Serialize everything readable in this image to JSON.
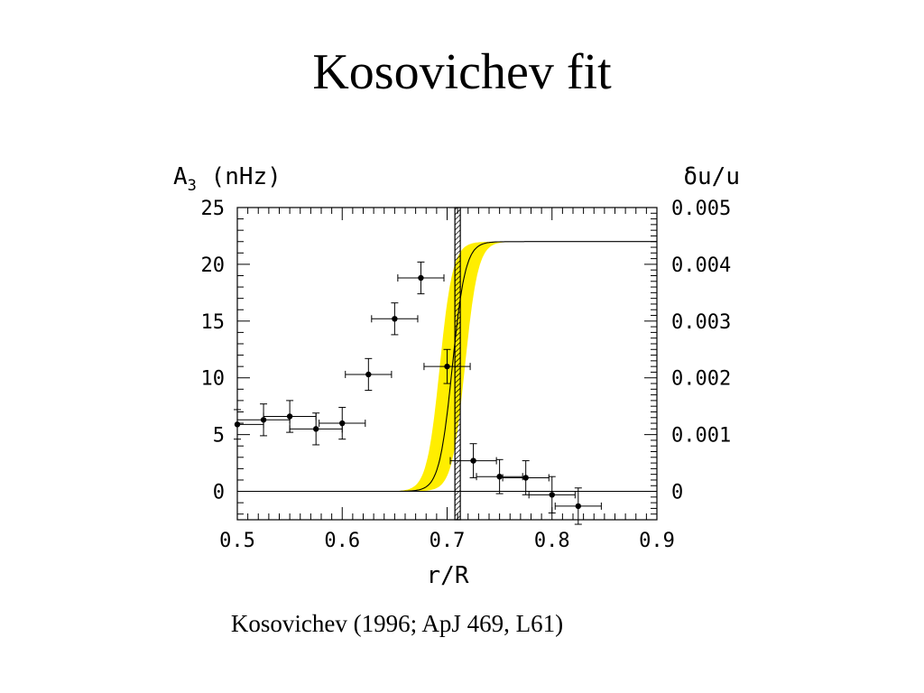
{
  "slide": {
    "title": "Kosovichev fit",
    "caption": "Kosovichev (1996; ApJ 469, L61)"
  },
  "colors": {
    "band": "#ffee00",
    "ink": "#000000",
    "background": "#ffffff"
  },
  "chart_data": {
    "type": "scatter",
    "title": "",
    "xlabel": "r/R",
    "ylabel": "A3 (nHz)",
    "ylabel_main": "A",
    "ylabel_sub": "3",
    "ylabel_rest": " (nHz)",
    "y2label": "δu/u",
    "xlim": [
      0.5,
      0.9
    ],
    "ylim": [
      -2.5,
      25
    ],
    "y2lim": [
      -0.0005,
      0.005
    ],
    "x_ticks": [
      0.5,
      0.6,
      0.7,
      0.8,
      0.9
    ],
    "x_tick_labels": [
      "0.5",
      "0.6",
      "0.7",
      "0.8",
      "0.9"
    ],
    "y_ticks": [
      0,
      5,
      10,
      15,
      20,
      25
    ],
    "y_tick_labels": [
      "0",
      "5",
      "10",
      "15",
      "20",
      "25"
    ],
    "y2_ticks": [
      0,
      0.001,
      0.002,
      0.003,
      0.004,
      0.005
    ],
    "y2_tick_labels": [
      "0",
      "0.001",
      "0.002",
      "0.003",
      "0.004",
      "0.005"
    ],
    "grid": false,
    "tachocline_radius": 0.71,
    "model_curve": {
      "name": "",
      "form": "step",
      "center_x": 0.705,
      "width": 0.025,
      "amplitude": 22,
      "band_halfwidth_x": 0.012
    },
    "series": [
      {
        "name": "",
        "points": [
          {
            "x": 0.5,
            "y": 5.9,
            "xerr": 0.025,
            "yerr": 1.3
          },
          {
            "x": 0.525,
            "y": 6.3,
            "xerr": 0.025,
            "yerr": 1.4
          },
          {
            "x": 0.55,
            "y": 6.6,
            "xerr": 0.025,
            "yerr": 1.4
          },
          {
            "x": 0.575,
            "y": 5.5,
            "xerr": 0.025,
            "yerr": 1.4
          },
          {
            "x": 0.6,
            "y": 6.0,
            "xerr": 0.022,
            "yerr": 1.4
          },
          {
            "x": 0.625,
            "y": 10.3,
            "xerr": 0.022,
            "yerr": 1.4
          },
          {
            "x": 0.65,
            "y": 15.2,
            "xerr": 0.022,
            "yerr": 1.4
          },
          {
            "x": 0.675,
            "y": 18.8,
            "xerr": 0.022,
            "yerr": 1.4
          },
          {
            "x": 0.7,
            "y": 11.0,
            "xerr": 0.022,
            "yerr": 1.5
          },
          {
            "x": 0.725,
            "y": 2.7,
            "xerr": 0.022,
            "yerr": 1.5
          },
          {
            "x": 0.75,
            "y": 1.3,
            "xerr": 0.022,
            "yerr": 1.5
          },
          {
            "x": 0.775,
            "y": 1.2,
            "xerr": 0.022,
            "yerr": 1.5
          },
          {
            "x": 0.8,
            "y": -0.3,
            "xerr": 0.022,
            "yerr": 1.6
          },
          {
            "x": 0.825,
            "y": -1.3,
            "xerr": 0.022,
            "yerr": 1.6
          }
        ]
      }
    ]
  }
}
